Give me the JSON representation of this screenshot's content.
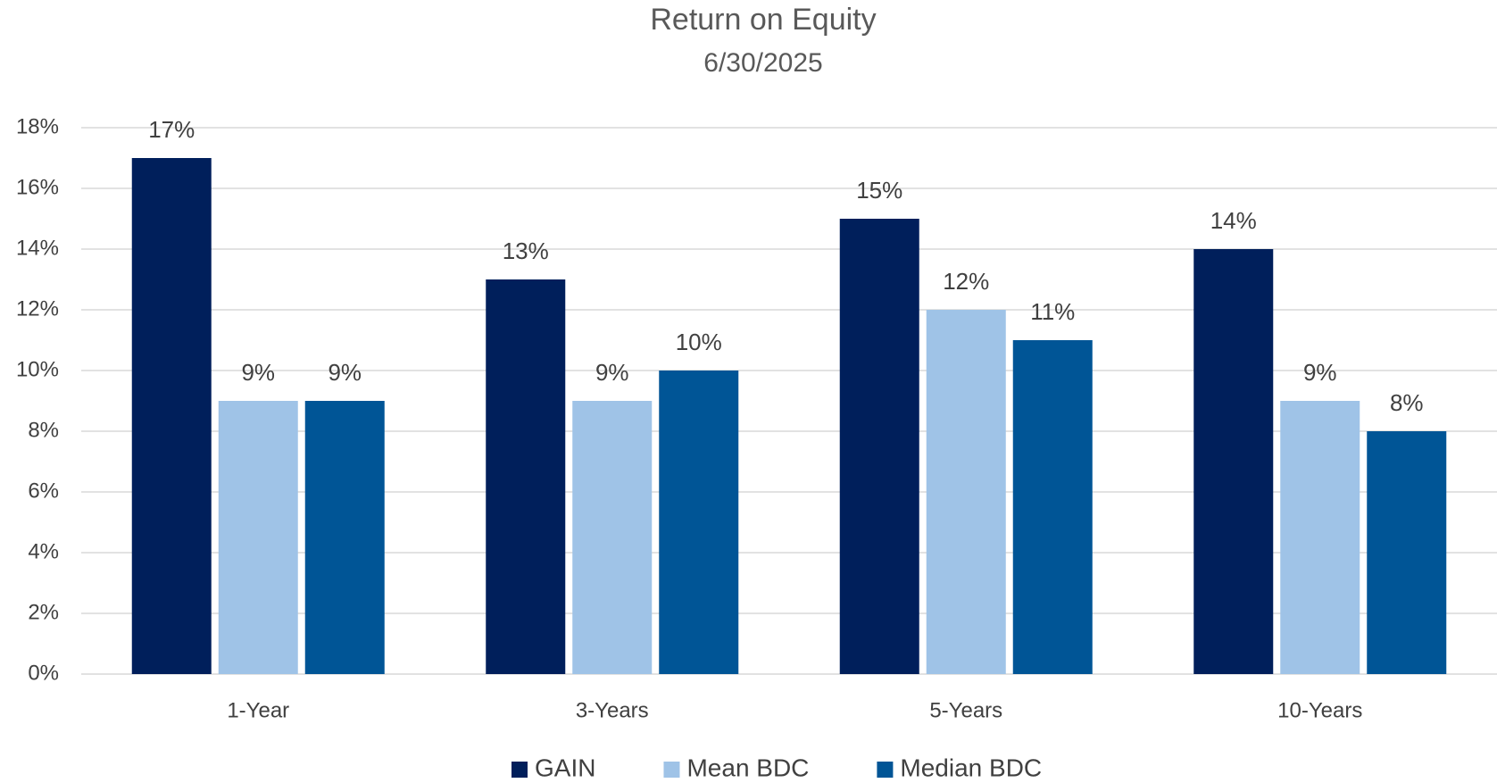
{
  "chart_data": {
    "type": "bar",
    "title": "Return on Equity",
    "subtitle": "6/30/2025",
    "categories": [
      "1-Year",
      "3-Years",
      "5-Years",
      "10-Years"
    ],
    "series": [
      {
        "name": "GAIN",
        "color": "#001f5b",
        "values": [
          17,
          13,
          15,
          14
        ],
        "value_labels": [
          "17%",
          "13%",
          "15%",
          "14%"
        ]
      },
      {
        "name": "Mean BDC",
        "color": "#9fc3e7",
        "values": [
          9,
          9,
          12,
          9
        ],
        "value_labels": [
          "9%",
          "9%",
          "12%",
          "9%"
        ]
      },
      {
        "name": "Median BDC",
        "color": "#005596",
        "values": [
          9,
          10,
          11,
          8
        ],
        "value_labels": [
          "9%",
          "10%",
          "11%",
          "8%"
        ]
      }
    ],
    "ylim": [
      0,
      18
    ],
    "yticks": [
      {
        "value": 0,
        "label": "0%"
      },
      {
        "value": 2,
        "label": "2%"
      },
      {
        "value": 4,
        "label": "4%"
      },
      {
        "value": 6,
        "label": "6%"
      },
      {
        "value": 8,
        "label": "8%"
      },
      {
        "value": 10,
        "label": "10%"
      },
      {
        "value": 12,
        "label": "12%"
      },
      {
        "value": 14,
        "label": "14%"
      },
      {
        "value": 16,
        "label": "16%"
      },
      {
        "value": 18,
        "label": "18%"
      }
    ],
    "grid": true,
    "legend": "bottom"
  }
}
